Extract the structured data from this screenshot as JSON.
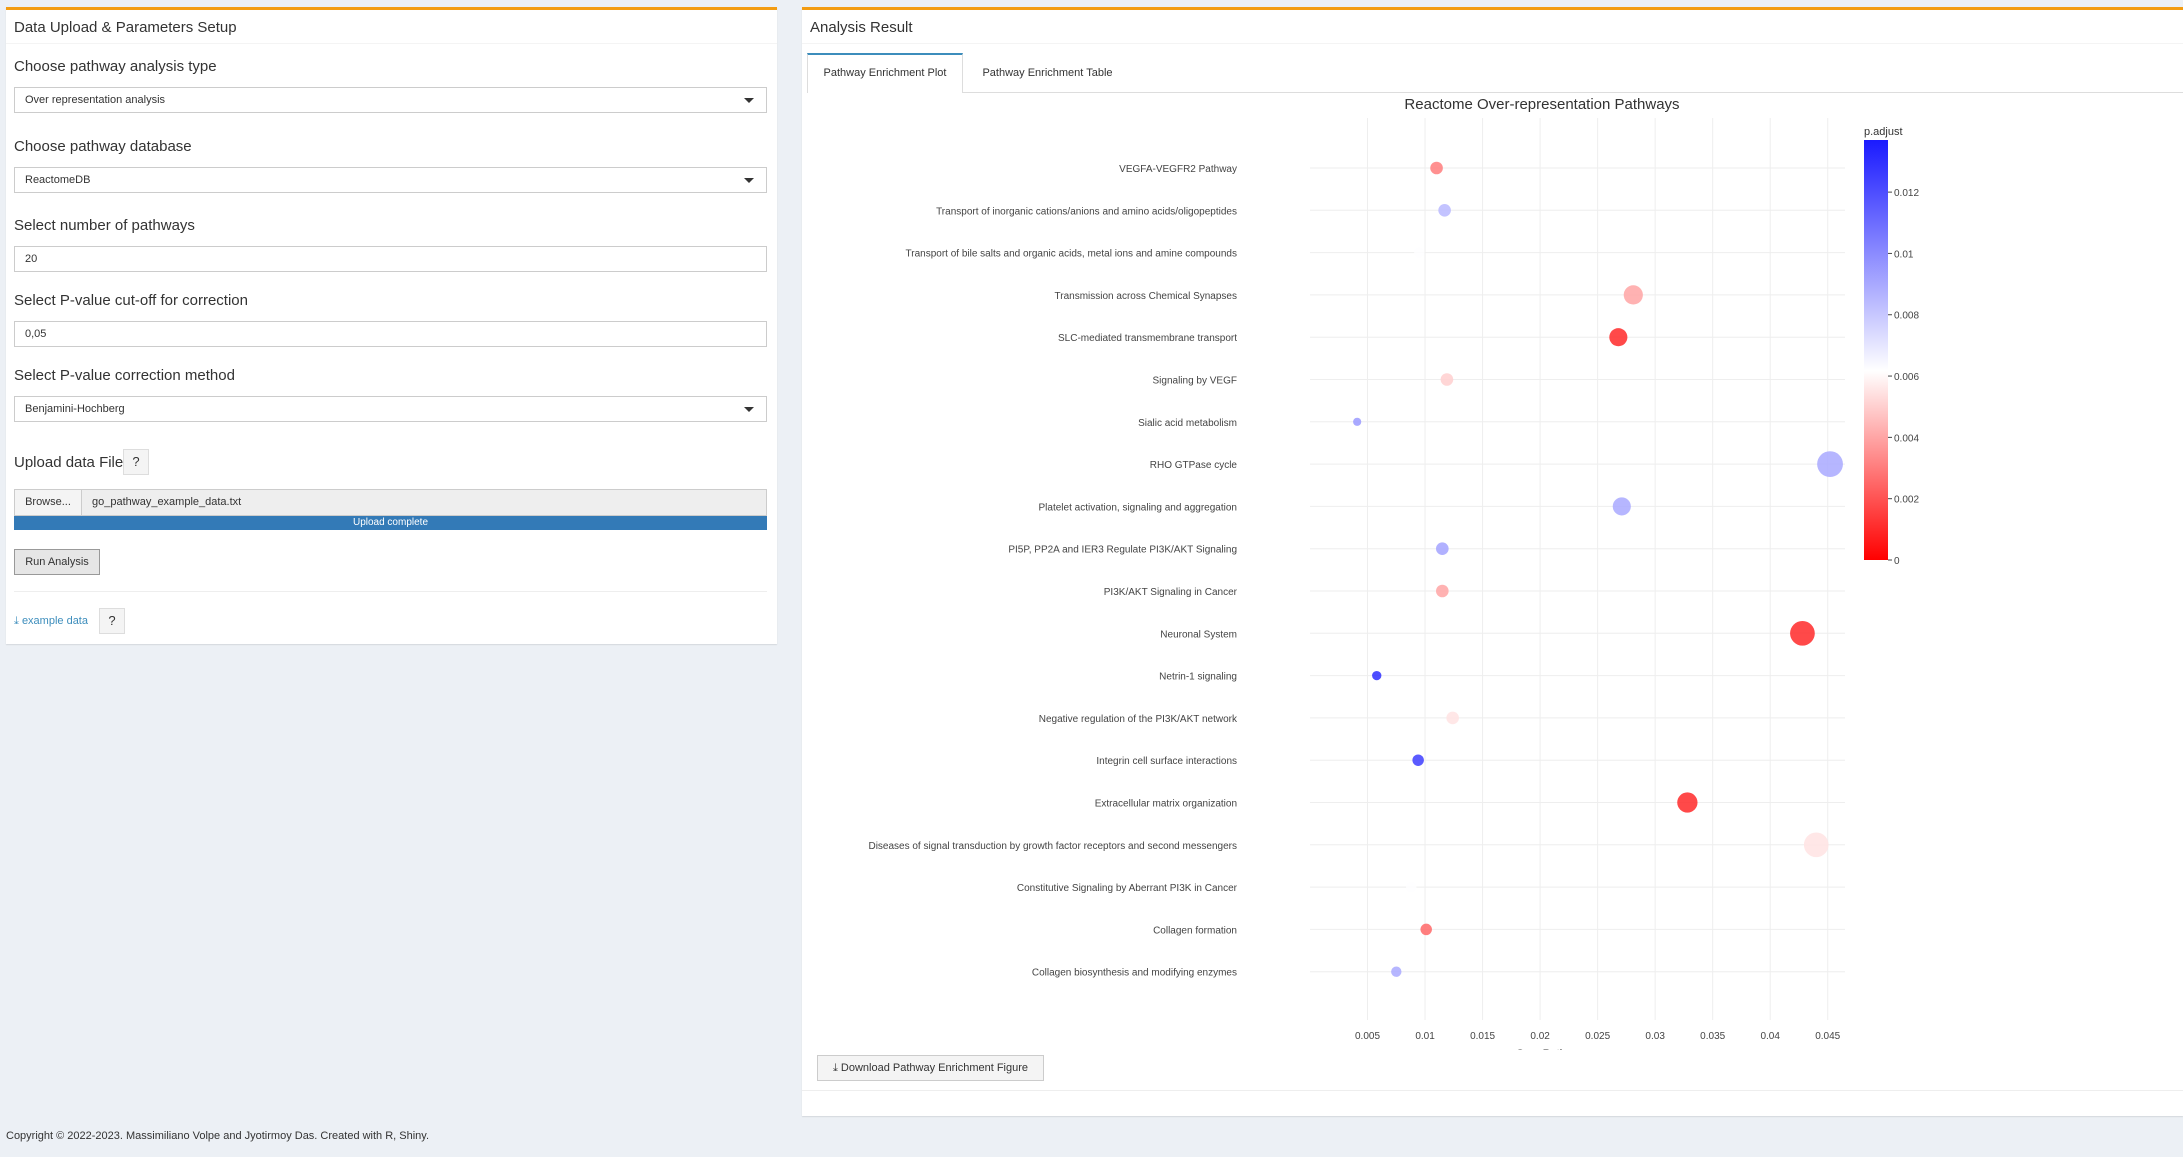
{
  "left_panel": {
    "title": "Data Upload & Parameters Setup",
    "analysis_type": {
      "label": "Choose pathway analysis type",
      "value": "Over representation analysis"
    },
    "database": {
      "label": "Choose pathway database",
      "value": "ReactomeDB"
    },
    "num_pathways": {
      "label": "Select number of pathways",
      "value": "20"
    },
    "pvalue_cutoff": {
      "label": "Select P-value cut-off for correction",
      "value": "0,05"
    },
    "correction_method": {
      "label": "Select P-value correction method",
      "value": "Benjamini-Hochberg"
    },
    "upload": {
      "label": "Upload data File",
      "help": "?",
      "browse_label": "Browse...",
      "file_name": "go_pathway_example_data.txt",
      "progress_text": "Upload complete",
      "progress": 1.0
    },
    "run_label": "Run Analysis",
    "example_link": "example data",
    "example_help": "?"
  },
  "right_panel": {
    "title": "Analysis Result",
    "tabs": [
      {
        "label": "Pathway Enrichment Plot",
        "active": true
      },
      {
        "label": "Pathway Enrichment Table",
        "active": false
      }
    ],
    "download_label": "Download Pathway Enrichment Figure"
  },
  "chart_data": {
    "type": "scatter",
    "title": "Reactome Over-representation Pathways",
    "xlabel": "GeneRatio",
    "xlim": [
      0.0,
      0.0465
    ],
    "xticks": [
      0.005,
      0.01,
      0.015,
      0.02,
      0.025,
      0.03,
      0.035,
      0.04,
      0.045
    ],
    "xtick_labels": [
      "0.005",
      "0.01",
      "0.015",
      "0.02",
      "0.025",
      "0.03",
      "0.035",
      "0.04",
      "0.045"
    ],
    "colorbar": {
      "title": "p.adjust",
      "min": 0,
      "max": 0.0137,
      "ticks": [
        0,
        0.002,
        0.004,
        0.006,
        0.008,
        0.01,
        0.012
      ],
      "tick_labels": [
        "0",
        "0.002",
        "0.004",
        "0.006",
        "0.008",
        "0.01",
        "0.012"
      ],
      "low_color": "#ff0000",
      "mid_color": "#ffffff",
      "high_color": "#1a1aff"
    },
    "points": [
      {
        "pathway": "VEGFA-VEGFR2 Pathway",
        "gene_ratio": 0.011,
        "p_adjust": 0.003,
        "count": 6
      },
      {
        "pathway": "Transport of inorganic cations/anions and amino acids/oligopeptides",
        "gene_ratio": 0.0117,
        "p_adjust": 0.0085,
        "count": 6
      },
      {
        "pathway": "Transport of bile salts and organic acids, metal ions and amine compounds",
        "gene_ratio": 0.0095,
        "p_adjust": 0.0062,
        "count": 4
      },
      {
        "pathway": "Transmission across Chemical Synapses",
        "gene_ratio": 0.0281,
        "p_adjust": 0.004,
        "count": 12
      },
      {
        "pathway": "SLC-mediated transmembrane transport",
        "gene_ratio": 0.0268,
        "p_adjust": 0.001,
        "count": 11
      },
      {
        "pathway": "Signaling by VEGF",
        "gene_ratio": 0.0119,
        "p_adjust": 0.005,
        "count": 6
      },
      {
        "pathway": "Sialic acid metabolism",
        "gene_ratio": 0.0041,
        "p_adjust": 0.0095,
        "count": 2
      },
      {
        "pathway": "RHO GTPase cycle",
        "gene_ratio": 0.0452,
        "p_adjust": 0.009,
        "count": 18
      },
      {
        "pathway": "Platelet activation, signaling and aggregation",
        "gene_ratio": 0.0271,
        "p_adjust": 0.009,
        "count": 11
      },
      {
        "pathway": "PI5P, PP2A and IER3 Regulate PI3K/AKT Signaling",
        "gene_ratio": 0.0115,
        "p_adjust": 0.0092,
        "count": 6
      },
      {
        "pathway": "PI3K/AKT Signaling in Cancer",
        "gene_ratio": 0.0115,
        "p_adjust": 0.004,
        "count": 6
      },
      {
        "pathway": "Neuronal System",
        "gene_ratio": 0.0428,
        "p_adjust": 0.001,
        "count": 17
      },
      {
        "pathway": "Netrin-1 signaling",
        "gene_ratio": 0.0058,
        "p_adjust": 0.013,
        "count": 3
      },
      {
        "pathway": "Negative regulation of the PI3K/AKT network",
        "gene_ratio": 0.0124,
        "p_adjust": 0.0055,
        "count": 6
      },
      {
        "pathway": "Integrin cell surface interactions",
        "gene_ratio": 0.0094,
        "p_adjust": 0.0125,
        "count": 5
      },
      {
        "pathway": "Extracellular matrix organization",
        "gene_ratio": 0.0328,
        "p_adjust": 0.001,
        "count": 13
      },
      {
        "pathway": "Diseases of signal transduction by growth factor receptors and second messengers",
        "gene_ratio": 0.044,
        "p_adjust": 0.0055,
        "count": 17
      },
      {
        "pathway": "Constitutive Signaling by Aberrant PI3K in Cancer",
        "gene_ratio": 0.0088,
        "p_adjust": 0.0062,
        "count": 4
      },
      {
        "pathway": "Collagen formation",
        "gene_ratio": 0.0101,
        "p_adjust": 0.0025,
        "count": 5
      },
      {
        "pathway": "Collagen biosynthesis and modifying enzymes",
        "gene_ratio": 0.0075,
        "p_adjust": 0.009,
        "count": 4
      }
    ]
  },
  "footer": "Copyright © 2022-2023. Massimiliano Volpe and Jyotirmoy Das. Created with R, Shiny."
}
